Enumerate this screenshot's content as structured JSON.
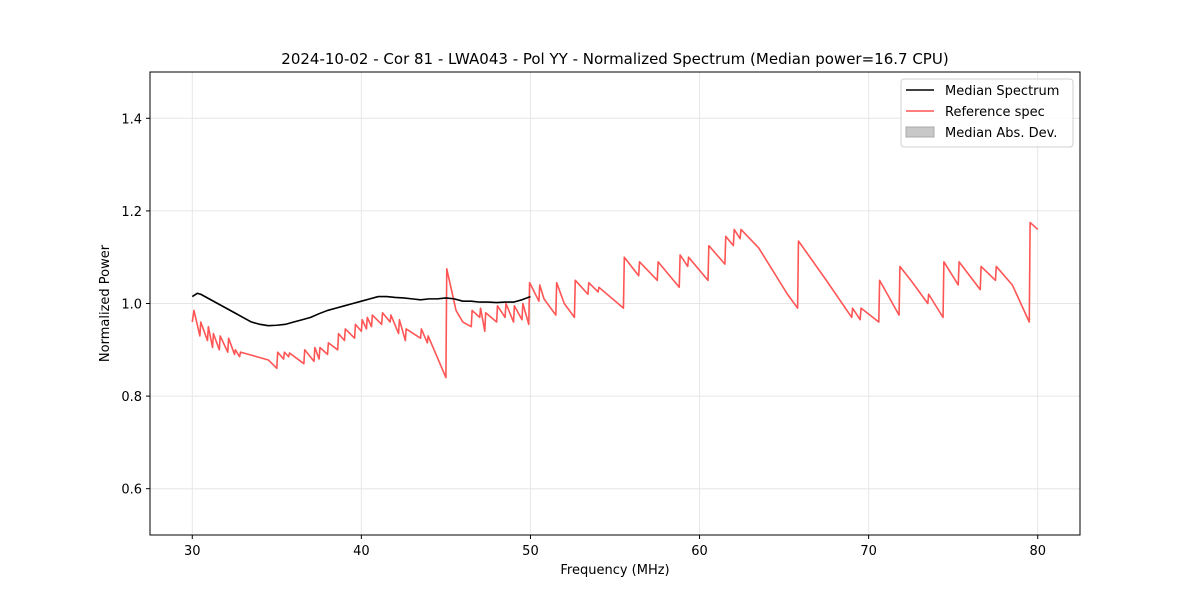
{
  "chart_data": {
    "type": "line",
    "title": "2024-10-02 - Cor 81 - LWA043 - Pol YY - Normalized Spectrum (Median power=16.7 CPU)",
    "xlabel": "Frequency (MHz)",
    "ylabel": "Normalized Power",
    "xlim": [
      27.5,
      82.5
    ],
    "ylim": [
      0.5,
      1.5
    ],
    "xticks": [
      30,
      40,
      50,
      60,
      70,
      80
    ],
    "yticks": [
      0.6,
      0.8,
      1.0,
      1.2,
      1.4
    ],
    "xtick_labels": [
      "30",
      "40",
      "50",
      "60",
      "70",
      "80"
    ],
    "ytick_labels": [
      "0.6",
      "0.8",
      "1.0",
      "1.2",
      "1.4"
    ],
    "grid": true,
    "legend_position": "top-right",
    "legend": [
      {
        "label": "Median Spectrum",
        "kind": "line",
        "color": "#000000"
      },
      {
        "label": "Reference spec",
        "kind": "line",
        "color": "#ff5555"
      },
      {
        "label": "Median Abs. Dev.",
        "kind": "patch",
        "color": "#c8c8c8"
      }
    ],
    "series": [
      {
        "name": "Median Spectrum",
        "color": "#000000",
        "x": [
          30.0,
          30.3,
          30.5,
          31.0,
          31.5,
          32.0,
          32.5,
          33.0,
          33.5,
          34.0,
          34.5,
          35.0,
          35.5,
          36.0,
          36.5,
          37.0,
          37.5,
          38.0,
          38.5,
          39.0,
          39.5,
          40.0,
          40.5,
          41.0,
          41.5,
          42.0,
          42.5,
          43.0,
          43.5,
          44.0,
          44.5,
          45.0,
          45.5,
          46.0,
          46.5,
          47.0,
          47.5,
          48.0,
          48.5,
          49.0,
          49.5,
          50.0
        ],
        "y": [
          1.015,
          1.022,
          1.02,
          1.01,
          1.0,
          0.99,
          0.98,
          0.97,
          0.96,
          0.955,
          0.952,
          0.953,
          0.955,
          0.96,
          0.965,
          0.97,
          0.978,
          0.985,
          0.99,
          0.995,
          1.0,
          1.005,
          1.01,
          1.015,
          1.015,
          1.013,
          1.012,
          1.01,
          1.008,
          1.01,
          1.01,
          1.012,
          1.01,
          1.005,
          1.005,
          1.003,
          1.003,
          1.002,
          1.003,
          1.003,
          1.008,
          1.015
        ]
      },
      {
        "name": "Reference spec",
        "color": "#ff5555",
        "x": [
          30.0,
          30.1,
          30.45,
          30.5,
          30.9,
          30.95,
          31.2,
          31.25,
          31.6,
          31.65,
          32.1,
          32.15,
          32.5,
          32.55,
          32.8,
          32.85,
          34.5,
          35.0,
          35.05,
          35.4,
          35.45,
          35.7,
          35.75,
          36.6,
          36.65,
          37.2,
          37.25,
          37.5,
          37.55,
          38.0,
          38.05,
          38.6,
          38.65,
          39.0,
          39.05,
          39.6,
          39.65,
          40.0,
          40.05,
          40.3,
          40.35,
          40.6,
          40.65,
          41.2,
          41.25,
          41.7,
          41.75,
          42.2,
          42.25,
          42.6,
          42.65,
          43.5,
          43.55,
          43.9,
          43.95,
          45.0,
          45.05,
          45.6,
          46.0,
          46.5,
          46.55,
          47.0,
          47.05,
          47.3,
          47.35,
          48.0,
          48.05,
          48.5,
          48.55,
          49.0,
          49.05,
          49.5,
          49.55,
          49.9,
          49.95,
          50.5,
          50.55,
          50.8,
          51.5,
          51.55,
          52.0,
          52.6,
          52.65,
          53.4,
          53.45,
          54.0,
          54.05,
          55.5,
          55.55,
          56.4,
          56.45,
          57.5,
          57.55,
          58.8,
          58.85,
          59.3,
          59.35,
          60.5,
          60.55,
          61.5,
          61.55,
          62.0,
          62.05,
          62.4,
          62.45,
          63.5,
          65.2,
          65.8,
          65.85,
          67.5,
          69.0,
          69.05,
          69.5,
          69.55,
          70.6,
          70.65,
          71.8,
          71.85,
          72.5,
          73.5,
          73.55,
          74.4,
          74.45,
          75.3,
          75.35,
          76.6,
          76.65,
          77.5,
          77.55,
          78.5,
          79.0,
          79.5,
          79.55,
          80.0
        ],
        "y": [
          0.96,
          0.985,
          0.93,
          0.96,
          0.92,
          0.95,
          0.905,
          0.935,
          0.9,
          0.93,
          0.895,
          0.925,
          0.89,
          0.9,
          0.885,
          0.895,
          0.878,
          0.86,
          0.895,
          0.88,
          0.895,
          0.885,
          0.893,
          0.87,
          0.9,
          0.875,
          0.905,
          0.88,
          0.905,
          0.89,
          0.915,
          0.9,
          0.935,
          0.92,
          0.945,
          0.925,
          0.955,
          0.94,
          0.965,
          0.945,
          0.97,
          0.95,
          0.975,
          0.955,
          0.98,
          0.96,
          0.975,
          0.935,
          0.965,
          0.92,
          0.945,
          0.925,
          0.945,
          0.915,
          0.93,
          0.84,
          1.075,
          0.985,
          0.96,
          0.95,
          0.985,
          0.97,
          0.99,
          0.94,
          0.98,
          0.96,
          0.995,
          0.97,
          1.0,
          0.96,
          0.995,
          0.965,
          1.0,
          0.955,
          1.045,
          1.005,
          1.04,
          1.01,
          0.975,
          1.045,
          1.0,
          0.97,
          1.05,
          1.02,
          1.045,
          1.025,
          1.035,
          0.99,
          1.1,
          1.06,
          1.09,
          1.05,
          1.09,
          1.035,
          1.105,
          1.08,
          1.1,
          1.05,
          1.125,
          1.085,
          1.145,
          1.125,
          1.16,
          1.14,
          1.16,
          1.12,
          1.02,
          0.99,
          1.135,
          1.05,
          0.97,
          0.99,
          0.965,
          0.99,
          0.96,
          1.05,
          0.975,
          1.08,
          1.05,
          1.0,
          1.02,
          0.97,
          1.09,
          1.04,
          1.09,
          1.03,
          1.08,
          1.05,
          1.08,
          1.04,
          1.0,
          0.96,
          1.175,
          1.16
        ]
      }
    ]
  }
}
